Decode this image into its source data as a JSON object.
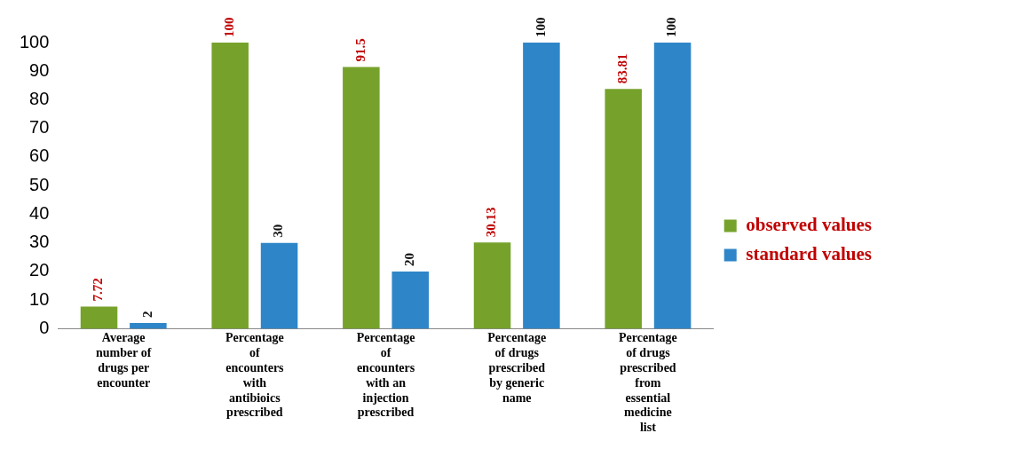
{
  "chart_data": {
    "type": "bar",
    "categories": [
      "Average number of drugs per encounter",
      "Percentage of encounters with antibioics prescribed",
      "Percentage of encounters with an injection prescribed",
      "Percentage of drugs prescribed by generic name",
      "Percentage of drugs prescribed from essential medicine list"
    ],
    "series": [
      {
        "name": "observed values",
        "color": "#76a22b",
        "values": [
          7.72,
          100,
          91.5,
          30.13,
          83.81
        ]
      },
      {
        "name": "standard values",
        "color": "#2e86c8",
        "values": [
          2,
          30,
          20,
          100,
          100
        ]
      }
    ],
    "ylim": [
      0,
      100
    ],
    "yticks": [
      0,
      10,
      20,
      30,
      40,
      50,
      60,
      70,
      80,
      90,
      100
    ],
    "grid": false,
    "legend": "right",
    "data_labels": true
  }
}
